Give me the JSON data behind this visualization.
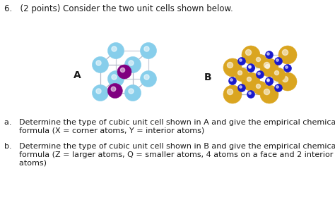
{
  "title": "6.   (2 points) Consider the two unit cells shown below.",
  "label_a": "A",
  "label_b": "B",
  "text_a_line1": "a.   Determine the type of cubic unit cell shown in A and give the empirical chemical",
  "text_a_line2": "      formula (X = corner atoms, Y = interior atoms)",
  "text_b_line1": "b.   Determine the type of cubic unit cell shown in B and give the empirical chemical",
  "text_b_line2": "      formula (Z = larger atoms, Q = smaller atoms, 4 atoms on a face and 2 interior",
  "text_b_line3": "      atoms)",
  "bg_color": "#ffffff",
  "text_color": "#1a1a1a",
  "title_fontsize": 8.5,
  "body_fontsize": 8.0,
  "label_fontsize": 10,
  "corner_color_a": "#87CEEB",
  "interior_color_a": "#800080",
  "corner_color_b": "#DAA520",
  "face_color_b": "#1a1aCC",
  "edge_color": "#b0b8c8"
}
